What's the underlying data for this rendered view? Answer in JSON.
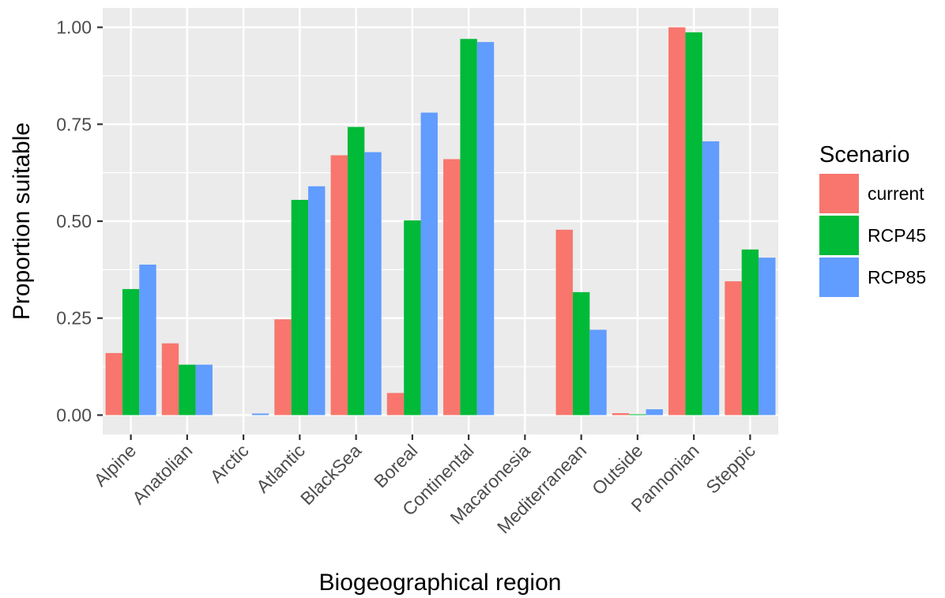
{
  "chart_data": {
    "type": "bar",
    "title": "",
    "xlabel": "Biogeographical region",
    "ylabel": "Proportion suitable",
    "categories": [
      "Alpine",
      "Anatolian",
      "Arctic",
      "Atlantic",
      "BlackSea",
      "Boreal",
      "Continental",
      "Macaronesia",
      "Mediterranean",
      "Outside",
      "Pannonian",
      "Steppic"
    ],
    "series": [
      {
        "name": "current",
        "color": "#F8766D",
        "values": [
          0.16,
          0.185,
          0.0,
          0.247,
          0.67,
          0.057,
          0.66,
          0.0,
          0.478,
          0.005,
          1.0,
          0.345
        ]
      },
      {
        "name": "RCP45",
        "color": "#00BA38",
        "values": [
          0.325,
          0.13,
          0.0,
          0.555,
          0.743,
          0.502,
          0.97,
          0.0,
          0.317,
          0.002,
          0.987,
          0.427
        ]
      },
      {
        "name": "RCP85",
        "color": "#619CFF",
        "values": [
          0.388,
          0.13,
          0.004,
          0.59,
          0.678,
          0.78,
          0.962,
          0.0,
          0.22,
          0.015,
          0.706,
          0.406
        ]
      }
    ],
    "ylim": [
      -0.05,
      1.05
    ],
    "yticks": [
      0.0,
      0.25,
      0.5,
      0.75,
      1.0
    ],
    "ytick_labels": [
      "0.00",
      "0.25",
      "0.50",
      "0.75",
      "1.00"
    ],
    "grid": true,
    "legend": {
      "title": "Scenario",
      "position": "right"
    },
    "panel_background": "#EBEBEB"
  }
}
